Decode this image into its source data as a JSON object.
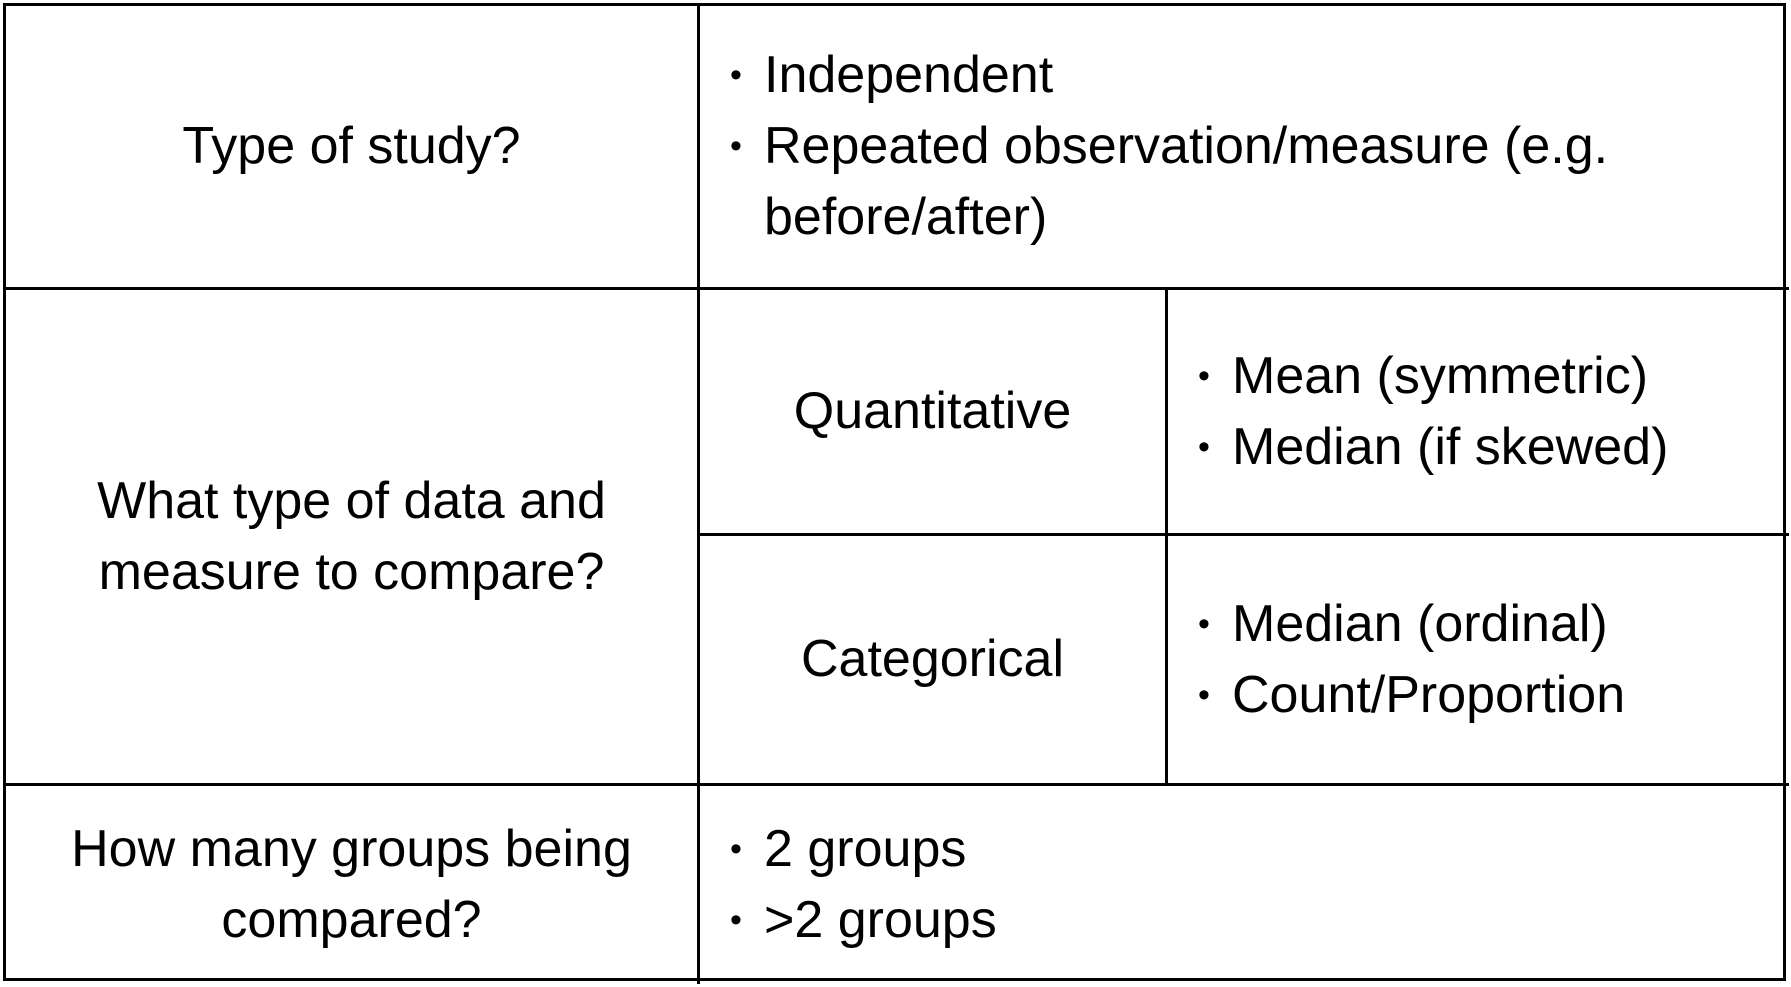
{
  "rows": {
    "study": {
      "question": "Type of study?",
      "options": [
        "Independent",
        "Repeated observation/measure (e.g. before/after)"
      ]
    },
    "data": {
      "question": "What type of data and measure to compare?",
      "quantitative": {
        "label": "Quantitative",
        "measures": [
          "Mean (symmetric)",
          "Median (if skewed)"
        ]
      },
      "categorical": {
        "label": "Categorical",
        "measures": [
          "Median (ordinal)",
          "Count/Proportion"
        ]
      }
    },
    "groups": {
      "question": "How many groups being compared?",
      "options": [
        "2 groups",
        ">2 groups"
      ]
    }
  }
}
